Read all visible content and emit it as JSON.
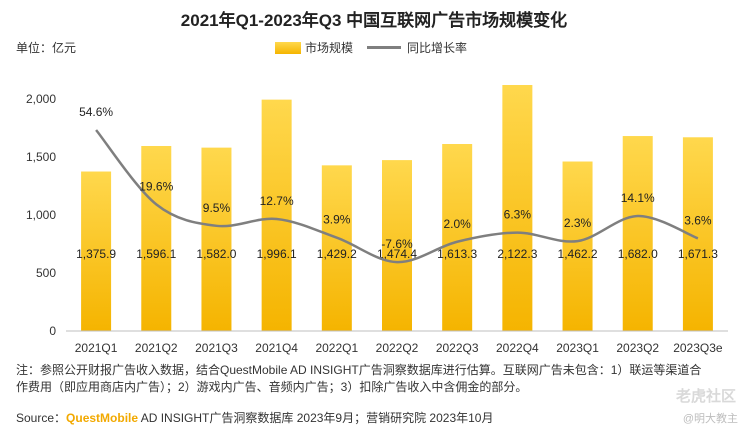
{
  "title": "2021年Q1-2023年Q3 中国互联网广告市场规模变化",
  "unit_label": "单位：亿元",
  "legend": {
    "bar": "市场规模",
    "line": "同比增长率"
  },
  "note": "注：参照公开财报广告收入数据，结合QuestMobile AD INSIGHT广告洞察数据库进行估算。互联网广告未包含：1）联运等渠道合作费用（即应用商店内广告）；2）游戏内广告、音频内广告；3）扣除广告收入中含佣金的部分。",
  "source": {
    "prefix": "Source：",
    "brand": "QuestMobile",
    "rest": " AD INSIGHT广告洞察数据库 2023年9月；营销研究院 2023年10月"
  },
  "watermark": "老虎社区",
  "watermark2": "@明大教主",
  "colors": {
    "bar_top": "#FFD84D",
    "bar_bottom": "#F5B400",
    "line": "#7f7f7f",
    "axis": "#bfbfbf"
  },
  "chart_data": {
    "type": "bar",
    "categories": [
      "2021Q1",
      "2021Q2",
      "2021Q3",
      "2021Q4",
      "2022Q1",
      "2022Q2",
      "2022Q3",
      "2022Q4",
      "2023Q1",
      "2023Q2",
      "2023Q3e"
    ],
    "series": [
      {
        "name": "市场规模",
        "type": "bar",
        "values": [
          1375.9,
          1596.1,
          1582.0,
          1996.1,
          1429.2,
          1474.4,
          1613.3,
          2122.3,
          1462.2,
          1682.0,
          1671.3
        ],
        "labels": [
          "1,375.9",
          "1,596.1",
          "1,582.0",
          "1,996.1",
          "1,429.2",
          "1,474.4",
          "1,613.3",
          "2,122.3",
          "1,462.2",
          "1,682.0",
          "1,671.3"
        ]
      },
      {
        "name": "同比增长率",
        "type": "line",
        "values": [
          54.6,
          19.6,
          9.5,
          12.7,
          3.9,
          -7.6,
          2.0,
          6.3,
          2.3,
          14.1,
          3.6
        ],
        "labels": [
          "54.6%",
          "19.6%",
          "9.5%",
          "12.7%",
          "3.9%",
          "-7.6%",
          "2.0%",
          "6.3%",
          "2.3%",
          "14.1%",
          "3.6%"
        ]
      }
    ],
    "y_ticks": [
      0,
      500,
      1000,
      1500,
      2000
    ],
    "y_tick_labels": [
      "0",
      "500",
      "1,000",
      "1,500",
      "2,000"
    ],
    "ylim": [
      0,
      2200
    ],
    "line_ylim": [
      -40,
      80
    ],
    "grid": false
  }
}
